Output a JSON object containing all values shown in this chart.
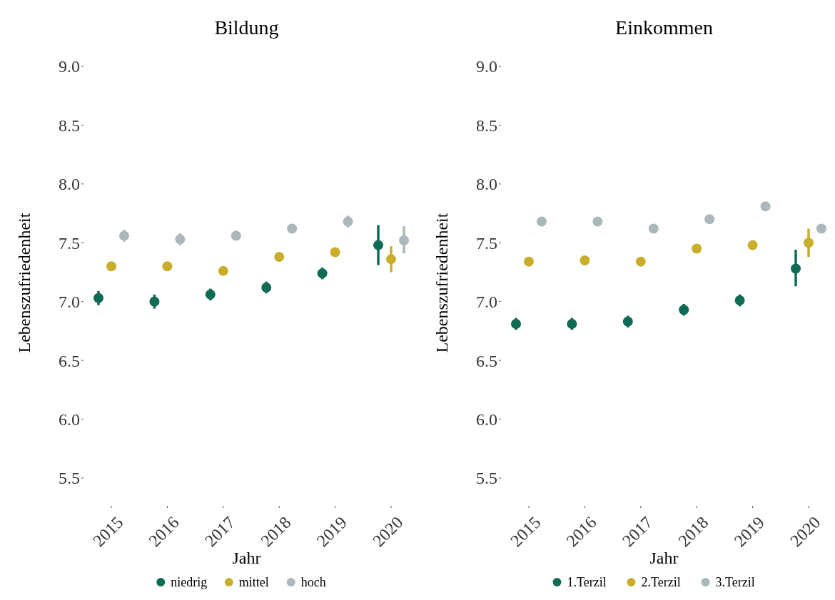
{
  "chart_data": [
    {
      "type": "scatter",
      "title": "Bildung",
      "xlabel": "Jahr",
      "ylabel": "Lebenszufriedenheit",
      "categories": [
        "2015",
        "2016",
        "2017",
        "2018",
        "2019",
        "2020"
      ],
      "ylim": [
        5.5,
        9
      ],
      "yticks": [
        {
          "value": 5.5,
          "label": "5.5"
        },
        {
          "value": 6,
          "label": "6.0"
        },
        {
          "value": 6.5,
          "label": "6.5"
        },
        {
          "value": 7,
          "label": "7.0"
        },
        {
          "value": 7.5,
          "label": "7.5"
        },
        {
          "value": 8,
          "label": "8.0"
        },
        {
          "value": 8.5,
          "label": "8.5"
        },
        {
          "value": 9,
          "label": "9.0"
        }
      ],
      "grid": false,
      "legend": "bottom",
      "marker": "circle",
      "series": [
        {
          "name": "niedrig",
          "color": "#0f6b54",
          "values": [
            7.03,
            7.0,
            7.06,
            7.12,
            7.24,
            7.48
          ],
          "errors": [
            0.06,
            0.06,
            0.05,
            0.05,
            0.05,
            [
              7.31,
              7.65
            ]
          ]
        },
        {
          "name": "mittel",
          "color": "#c9ae2c",
          "values": [
            7.3,
            7.3,
            7.26,
            7.38,
            7.42,
            7.36
          ],
          "errors": [
            0.03,
            0.03,
            0.03,
            0.03,
            0.03,
            [
              7.25,
              7.47
            ]
          ]
        },
        {
          "name": "hoch",
          "color": "#aab7bb",
          "values": [
            7.56,
            7.53,
            7.56,
            7.62,
            7.68,
            7.52
          ],
          "errors": [
            0.05,
            0.05,
            0.04,
            0.04,
            0.05,
            [
              7.41,
              7.64
            ]
          ]
        }
      ]
    },
    {
      "type": "scatter",
      "title": "Einkommen",
      "xlabel": "Jahr",
      "ylabel": "Lebenszufriedenheit",
      "categories": [
        "2015",
        "2016",
        "2017",
        "2018",
        "2019",
        "2020"
      ],
      "ylim": [
        5.5,
        9
      ],
      "yticks": [
        {
          "value": 5.5,
          "label": "5.5"
        },
        {
          "value": 6,
          "label": "6.0"
        },
        {
          "value": 6.5,
          "label": "6.5"
        },
        {
          "value": 7,
          "label": "7.0"
        },
        {
          "value": 7.5,
          "label": "7.5"
        },
        {
          "value": 8,
          "label": "8.0"
        },
        {
          "value": 8.5,
          "label": "8.5"
        },
        {
          "value": 9,
          "label": "9.0"
        }
      ],
      "grid": false,
      "legend": "bottom",
      "marker": "circle",
      "series": [
        {
          "name": "1.Terzil",
          "color": "#0f6b54",
          "values": [
            6.81,
            6.81,
            6.83,
            6.93,
            7.01,
            7.28
          ],
          "errors": [
            0.05,
            0.05,
            0.05,
            0.05,
            0.05,
            [
              7.13,
              7.44
            ]
          ]
        },
        {
          "name": "2.Terzil",
          "color": "#c9ae2c",
          "values": [
            7.34,
            7.35,
            7.34,
            7.45,
            7.48,
            7.5
          ],
          "errors": [
            0.04,
            0.04,
            0.03,
            0.03,
            0.04,
            [
              7.38,
              7.62
            ]
          ]
        },
        {
          "name": "3.Terzil",
          "color": "#aab7bb",
          "values": [
            7.68,
            7.68,
            7.62,
            7.7,
            7.81,
            7.62
          ],
          "errors": [
            0.03,
            0.03,
            0.03,
            0.03,
            0.03,
            null
          ]
        }
      ]
    }
  ]
}
